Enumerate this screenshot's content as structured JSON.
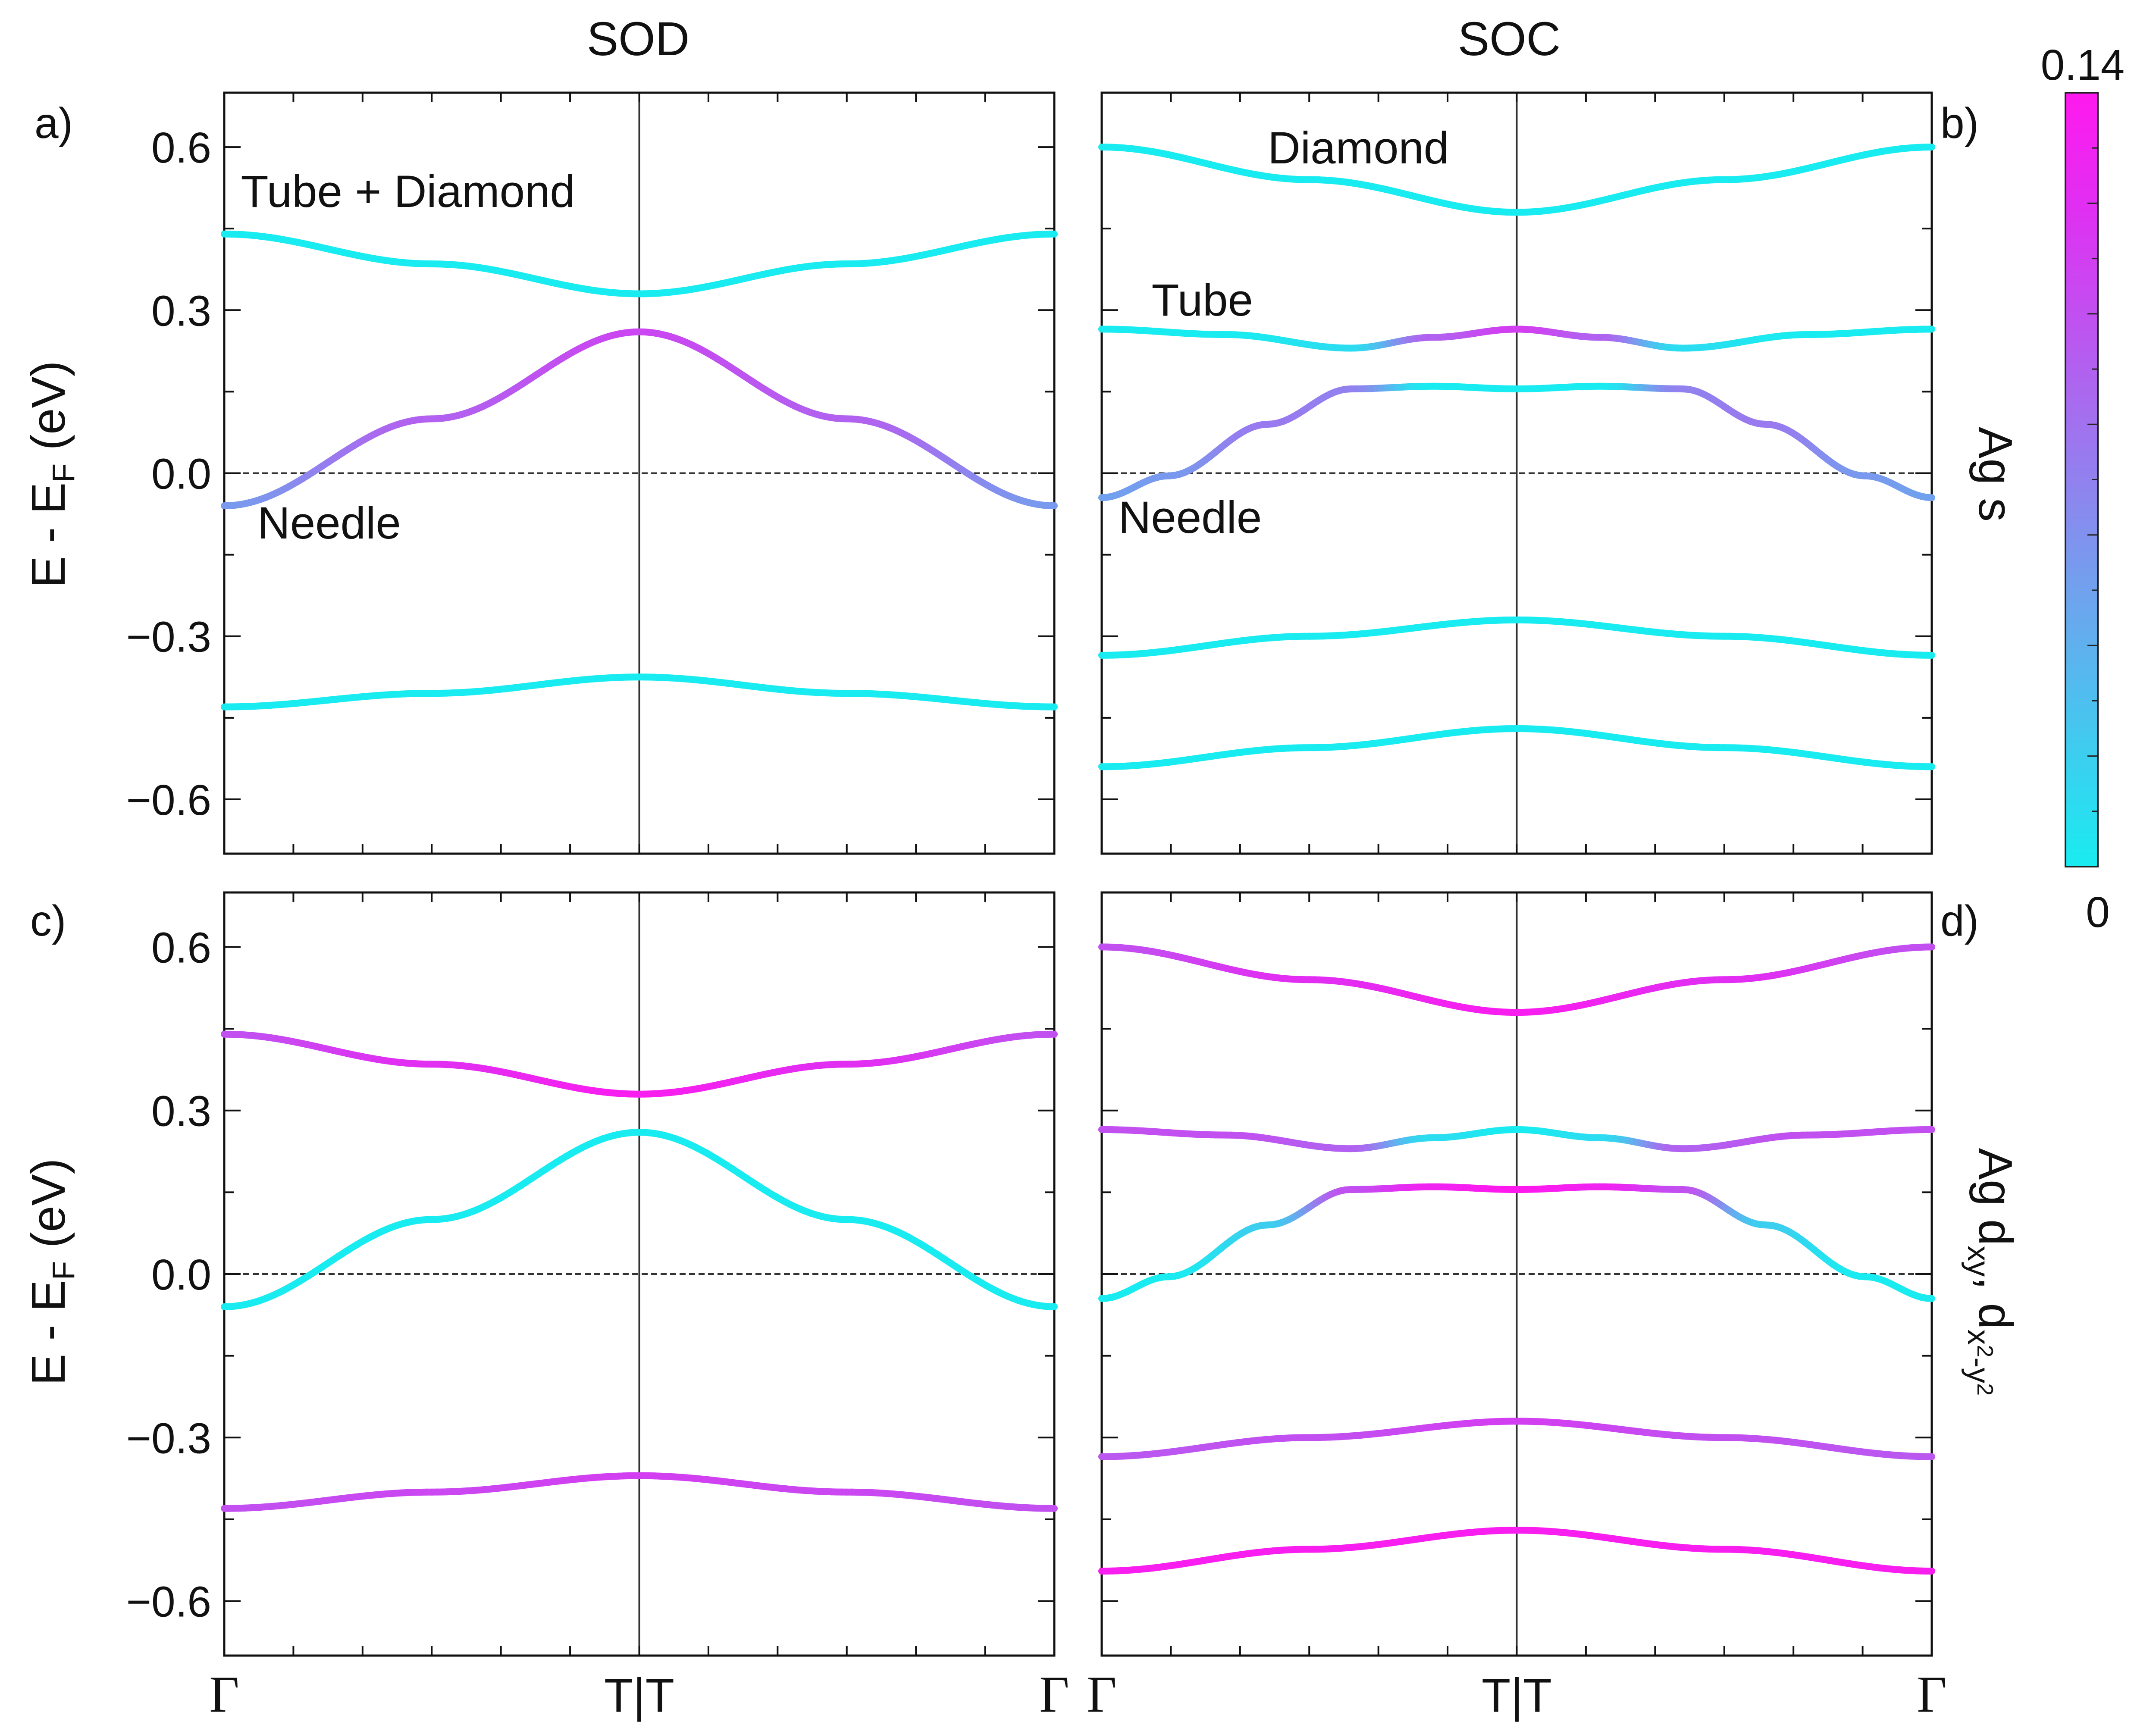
{
  "colorbar": {
    "max_label": "0.14",
    "min_label": "0",
    "max_value": 0.14,
    "min_value": 0,
    "colors": [
      "#19ecf0",
      "#6fa3ee",
      "#a86bef",
      "#e02ff2",
      "#ff19ee"
    ]
  },
  "column_titles": [
    "SOD",
    "SOC"
  ],
  "row_labels": [
    "Ag s",
    "Ag d_xy, d_x²-y²"
  ],
  "row_label_parts": {
    "ag_s": "Ag s",
    "ag_d_prefix": "Ag d",
    "xy": "xy",
    "comma": ",",
    "d": " d",
    "x": "x",
    "two_a": "2",
    "minus_y": "-y",
    "two_b": "2"
  },
  "ylabel_parts": {
    "main": "E - E",
    "sub": "F",
    "unit": " (eV)"
  },
  "chart_data": [
    {
      "panel": "a)",
      "type": "line",
      "column": "SOD",
      "projection": "Ag s",
      "x_ticks": [
        "Γ",
        "T|T",
        "Γ"
      ],
      "ylabel": "E - E_F (eV)",
      "ylim": [
        -0.7,
        0.7
      ],
      "y_ticks": [
        "0.6",
        "0.3",
        "0.0",
        "−0.3",
        "−0.6"
      ],
      "fermi_level": 0.0,
      "annotations": [
        {
          "text": "Tube + Diamond",
          "x": 0.02,
          "y": 0.49
        },
        {
          "text": "Needle",
          "x": 0.04,
          "y": -0.12
        }
      ],
      "series": [
        {
          "name": "band 1",
          "x": [
            0,
            0.25,
            0.5,
            0.75,
            1
          ],
          "y": [
            -0.43,
            -0.405,
            -0.375,
            -0.405,
            -0.43
          ],
          "weight": [
            0.0,
            0.0,
            0.0,
            0.0,
            0.0
          ]
        },
        {
          "name": "band 2",
          "x": [
            0,
            0.25,
            0.5,
            0.75,
            1
          ],
          "y": [
            -0.06,
            0.1,
            0.26,
            0.1,
            -0.06
          ],
          "weight": [
            0.055,
            0.09,
            0.105,
            0.09,
            0.055
          ]
        },
        {
          "name": "band 3",
          "x": [
            0,
            0.25,
            0.5,
            0.75,
            1
          ],
          "y": [
            0.44,
            0.385,
            0.33,
            0.385,
            0.44
          ],
          "weight": [
            0.0,
            0.0,
            0.0,
            0.0,
            0.0
          ]
        }
      ]
    },
    {
      "panel": "b)",
      "type": "line",
      "column": "SOC",
      "projection": "Ag s",
      "x_ticks": [
        "Γ",
        "T|T",
        "Γ"
      ],
      "ylabel": "",
      "ylim": [
        -0.7,
        0.7
      ],
      "y_ticks": [],
      "fermi_level": 0.0,
      "annotations": [
        {
          "text": "Diamond",
          "x": 0.2,
          "y": 0.57
        },
        {
          "text": "Tube",
          "x": 0.06,
          "y": 0.29
        },
        {
          "text": "Needle",
          "x": 0.02,
          "y": -0.11
        }
      ],
      "series": [
        {
          "name": "band 1",
          "x": [
            0,
            0.25,
            0.5,
            0.75,
            1
          ],
          "y": [
            -0.54,
            -0.505,
            -0.47,
            -0.505,
            -0.54
          ],
          "weight": [
            0.0,
            0.0,
            0.0,
            0.0,
            0.0
          ]
        },
        {
          "name": "band 2",
          "x": [
            0,
            0.25,
            0.5,
            0.75,
            1
          ],
          "y": [
            -0.335,
            -0.3,
            -0.27,
            -0.3,
            -0.335
          ],
          "weight": [
            0.0,
            0.0,
            0.0,
            0.0,
            0.0
          ]
        },
        {
          "name": "band 3",
          "x": [
            0,
            0.08,
            0.2,
            0.3,
            0.4,
            0.5,
            0.6,
            0.7,
            0.8,
            0.92,
            1
          ],
          "y": [
            -0.045,
            -0.005,
            0.09,
            0.155,
            0.16,
            0.155,
            0.16,
            0.155,
            0.09,
            -0.005,
            -0.045
          ],
          "weight": [
            0.05,
            0.055,
            0.075,
            0.07,
            0.0,
            0.0,
            0.0,
            0.07,
            0.075,
            0.055,
            0.05
          ]
        },
        {
          "name": "band 4",
          "x": [
            0,
            0.15,
            0.3,
            0.4,
            0.5,
            0.6,
            0.7,
            0.85,
            1
          ],
          "y": [
            0.265,
            0.255,
            0.23,
            0.25,
            0.265,
            0.25,
            0.23,
            0.255,
            0.265
          ],
          "weight": [
            0.0,
            0.0,
            0.01,
            0.09,
            0.11,
            0.09,
            0.01,
            0.0,
            0.0
          ]
        },
        {
          "name": "band 5",
          "x": [
            0,
            0.25,
            0.5,
            0.75,
            1
          ],
          "y": [
            0.6,
            0.54,
            0.48,
            0.54,
            0.6
          ],
          "weight": [
            0.0,
            0.0,
            0.0,
            0.0,
            0.0
          ]
        }
      ]
    },
    {
      "panel": "c)",
      "type": "line",
      "column": "SOD",
      "projection": "Ag d_xy, d_x²-y²",
      "x_ticks": [
        "Γ",
        "T|T",
        "Γ"
      ],
      "ylabel": "E - E_F (eV)",
      "ylim": [
        -0.7,
        0.7
      ],
      "y_ticks": [
        "0.6",
        "0.3",
        "0.0",
        "−0.3",
        "−0.6"
      ],
      "fermi_level": 0.0,
      "annotations": [],
      "series": [
        {
          "name": "band 1",
          "x": [
            0,
            0.25,
            0.5,
            0.75,
            1
          ],
          "y": [
            -0.43,
            -0.4,
            -0.37,
            -0.4,
            -0.43
          ],
          "weight": [
            0.1,
            0.105,
            0.11,
            0.105,
            0.1
          ]
        },
        {
          "name": "band 2",
          "x": [
            0,
            0.25,
            0.5,
            0.75,
            1
          ],
          "y": [
            -0.06,
            0.1,
            0.26,
            0.1,
            -0.06
          ],
          "weight": [
            0.0,
            0.0,
            0.0,
            0.0,
            0.0
          ]
        },
        {
          "name": "band 3",
          "x": [
            0,
            0.25,
            0.5,
            0.75,
            1
          ],
          "y": [
            0.44,
            0.385,
            0.33,
            0.385,
            0.44
          ],
          "weight": [
            0.1,
            0.12,
            0.135,
            0.12,
            0.1
          ]
        }
      ]
    },
    {
      "panel": "d)",
      "type": "line",
      "column": "SOC",
      "projection": "Ag d_xy, d_x²-y²",
      "x_ticks": [
        "Γ",
        "T|T",
        "Γ"
      ],
      "ylabel": "",
      "ylim": [
        -0.7,
        0.7
      ],
      "y_ticks": [],
      "fermi_level": 0.0,
      "annotations": [],
      "series": [
        {
          "name": "band 1",
          "x": [
            0,
            0.25,
            0.5,
            0.75,
            1
          ],
          "y": [
            -0.545,
            -0.505,
            -0.47,
            -0.505,
            -0.545
          ],
          "weight": [
            0.135,
            0.135,
            0.135,
            0.135,
            0.135
          ]
        },
        {
          "name": "band 2",
          "x": [
            0,
            0.25,
            0.5,
            0.75,
            1
          ],
          "y": [
            -0.335,
            -0.3,
            -0.27,
            -0.3,
            -0.335
          ],
          "weight": [
            0.095,
            0.1,
            0.11,
            0.1,
            0.095
          ]
        },
        {
          "name": "band 3",
          "x": [
            0,
            0.08,
            0.2,
            0.3,
            0.4,
            0.5,
            0.6,
            0.7,
            0.8,
            0.92,
            1
          ],
          "y": [
            -0.045,
            -0.005,
            0.09,
            0.155,
            0.16,
            0.155,
            0.16,
            0.155,
            0.09,
            -0.005,
            -0.045
          ],
          "weight": [
            0.0,
            0.0,
            0.02,
            0.1,
            0.13,
            0.14,
            0.13,
            0.1,
            0.02,
            0.0,
            0.0
          ]
        },
        {
          "name": "band 4",
          "x": [
            0,
            0.15,
            0.3,
            0.4,
            0.5,
            0.6,
            0.7,
            0.85,
            1
          ],
          "y": [
            0.265,
            0.255,
            0.23,
            0.25,
            0.265,
            0.25,
            0.23,
            0.255,
            0.265
          ],
          "weight": [
            0.1,
            0.1,
            0.09,
            0.01,
            0.0,
            0.01,
            0.09,
            0.1,
            0.1
          ]
        },
        {
          "name": "band 5",
          "x": [
            0,
            0.25,
            0.5,
            0.75,
            1
          ],
          "y": [
            0.6,
            0.54,
            0.48,
            0.54,
            0.6
          ],
          "weight": [
            0.1,
            0.12,
            0.135,
            0.12,
            0.1
          ]
        }
      ]
    }
  ]
}
